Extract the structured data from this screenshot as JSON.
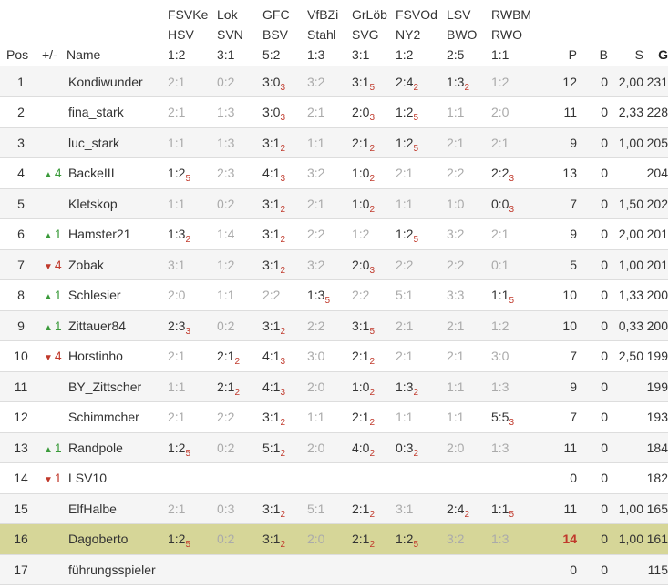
{
  "headers": {
    "pos": "Pos",
    "change": "+/-",
    "name": "Name",
    "games": [
      {
        "home": "FSVKe",
        "away": "HSV",
        "result": "1:2"
      },
      {
        "home": "Lok",
        "away": "SVN",
        "result": "3:1"
      },
      {
        "home": "GFC",
        "away": "BSV",
        "result": "5:2"
      },
      {
        "home": "VfBZi",
        "away": "Stahl",
        "result": "1:3"
      },
      {
        "home": "GrLöb",
        "away": "SVG",
        "result": "3:1"
      },
      {
        "home": "FSVOd",
        "away": "NY2",
        "result": "1:2"
      },
      {
        "home": "LSV",
        "away": "BWO",
        "result": "2:5"
      },
      {
        "home": "RWBM",
        "away": "RWO",
        "result": "1:1"
      }
    ],
    "p": "P",
    "b": "B",
    "s": "S",
    "g": "G"
  },
  "rows": [
    {
      "pos": "1",
      "dir": "",
      "chg": "",
      "name": "Kondiwunder",
      "tips": [
        {
          "t": "2:1",
          "g": true
        },
        {
          "t": "0:2",
          "g": true
        },
        {
          "t": "3:0",
          "p": "3"
        },
        {
          "t": "3:2",
          "g": true
        },
        {
          "t": "3:1",
          "p": "5"
        },
        {
          "t": "2:4",
          "p": "2"
        },
        {
          "t": "1:3",
          "p": "2"
        },
        {
          "t": "1:2",
          "g": true
        }
      ],
      "p": "12",
      "b": "0",
      "s": "2,00",
      "g": "231"
    },
    {
      "pos": "2",
      "dir": "",
      "chg": "",
      "name": "fina_stark",
      "tips": [
        {
          "t": "2:1",
          "g": true
        },
        {
          "t": "1:3",
          "g": true
        },
        {
          "t": "3:0",
          "p": "3"
        },
        {
          "t": "2:1",
          "g": true
        },
        {
          "t": "2:0",
          "p": "3"
        },
        {
          "t": "1:2",
          "p": "5"
        },
        {
          "t": "1:1",
          "g": true
        },
        {
          "t": "2:0",
          "g": true
        }
      ],
      "p": "11",
      "b": "0",
      "s": "2,33",
      "g": "228"
    },
    {
      "pos": "3",
      "dir": "",
      "chg": "",
      "name": "luc_stark",
      "tips": [
        {
          "t": "1:1",
          "g": true
        },
        {
          "t": "1:3",
          "g": true
        },
        {
          "t": "3:1",
          "p": "2"
        },
        {
          "t": "1:1",
          "g": true
        },
        {
          "t": "2:1",
          "p": "2"
        },
        {
          "t": "1:2",
          "p": "5"
        },
        {
          "t": "2:1",
          "g": true
        },
        {
          "t": "2:1",
          "g": true
        }
      ],
      "p": "9",
      "b": "0",
      "s": "1,00",
      "g": "205"
    },
    {
      "pos": "4",
      "dir": "up",
      "chg": "4",
      "name": "BackeIII",
      "tips": [
        {
          "t": "1:2",
          "p": "5"
        },
        {
          "t": "2:3",
          "g": true
        },
        {
          "t": "4:1",
          "p": "3"
        },
        {
          "t": "3:2",
          "g": true
        },
        {
          "t": "1:0",
          "p": "2"
        },
        {
          "t": "2:1",
          "g": true
        },
        {
          "t": "2:2",
          "g": true
        },
        {
          "t": "2:2",
          "p": "3"
        }
      ],
      "p": "13",
      "b": "0",
      "s": "",
      "g": "204"
    },
    {
      "pos": "5",
      "dir": "",
      "chg": "",
      "name": "Kletskop",
      "tips": [
        {
          "t": "1:1",
          "g": true
        },
        {
          "t": "0:2",
          "g": true
        },
        {
          "t": "3:1",
          "p": "2"
        },
        {
          "t": "2:1",
          "g": true
        },
        {
          "t": "1:0",
          "p": "2"
        },
        {
          "t": "1:1",
          "g": true
        },
        {
          "t": "1:0",
          "g": true
        },
        {
          "t": "0:0",
          "p": "3"
        }
      ],
      "p": "7",
      "b": "0",
      "s": "1,50",
      "g": "202"
    },
    {
      "pos": "6",
      "dir": "up",
      "chg": "1",
      "name": "Hamster21",
      "tips": [
        {
          "t": "1:3",
          "p": "2"
        },
        {
          "t": "1:4",
          "g": true
        },
        {
          "t": "3:1",
          "p": "2"
        },
        {
          "t": "2:2",
          "g": true
        },
        {
          "t": "1:2",
          "g": true
        },
        {
          "t": "1:2",
          "p": "5"
        },
        {
          "t": "3:2",
          "g": true
        },
        {
          "t": "2:1",
          "g": true
        }
      ],
      "p": "9",
      "b": "0",
      "s": "2,00",
      "g": "201"
    },
    {
      "pos": "7",
      "dir": "down",
      "chg": "4",
      "name": "Zobak",
      "tips": [
        {
          "t": "3:1",
          "g": true
        },
        {
          "t": "1:2",
          "g": true
        },
        {
          "t": "3:1",
          "p": "2"
        },
        {
          "t": "3:2",
          "g": true
        },
        {
          "t": "2:0",
          "p": "3"
        },
        {
          "t": "2:2",
          "g": true
        },
        {
          "t": "2:2",
          "g": true
        },
        {
          "t": "0:1",
          "g": true
        }
      ],
      "p": "5",
      "b": "0",
      "s": "1,00",
      "g": "201"
    },
    {
      "pos": "8",
      "dir": "up",
      "chg": "1",
      "name": "Schlesier",
      "tips": [
        {
          "t": "2:0",
          "g": true
        },
        {
          "t": "1:1",
          "g": true
        },
        {
          "t": "2:2",
          "g": true
        },
        {
          "t": "1:3",
          "p": "5"
        },
        {
          "t": "2:2",
          "g": true
        },
        {
          "t": "5:1",
          "g": true
        },
        {
          "t": "3:3",
          "g": true
        },
        {
          "t": "1:1",
          "p": "5"
        }
      ],
      "p": "10",
      "b": "0",
      "s": "1,33",
      "g": "200"
    },
    {
      "pos": "9",
      "dir": "up",
      "chg": "1",
      "name": "Zittauer84",
      "tips": [
        {
          "t": "2:3",
          "p": "3"
        },
        {
          "t": "0:2",
          "g": true
        },
        {
          "t": "3:1",
          "p": "2"
        },
        {
          "t": "2:2",
          "g": true
        },
        {
          "t": "3:1",
          "p": "5"
        },
        {
          "t": "2:1",
          "g": true
        },
        {
          "t": "2:1",
          "g": true
        },
        {
          "t": "1:2",
          "g": true
        }
      ],
      "p": "10",
      "b": "0",
      "s": "0,33",
      "g": "200"
    },
    {
      "pos": "10",
      "dir": "down",
      "chg": "4",
      "name": "Horstinho",
      "tips": [
        {
          "t": "2:1",
          "g": true
        },
        {
          "t": "2:1",
          "p": "2"
        },
        {
          "t": "4:1",
          "p": "3"
        },
        {
          "t": "3:0",
          "g": true
        },
        {
          "t": "2:1",
          "p": "2"
        },
        {
          "t": "2:1",
          "g": true
        },
        {
          "t": "2:1",
          "g": true
        },
        {
          "t": "3:0",
          "g": true
        }
      ],
      "p": "7",
      "b": "0",
      "s": "2,50",
      "g": "199"
    },
    {
      "pos": "11",
      "dir": "",
      "chg": "",
      "name": "BY_Zittscher",
      "tips": [
        {
          "t": "1:1",
          "g": true
        },
        {
          "t": "2:1",
          "p": "2"
        },
        {
          "t": "4:1",
          "p": "3"
        },
        {
          "t": "2:0",
          "g": true
        },
        {
          "t": "1:0",
          "p": "2"
        },
        {
          "t": "1:3",
          "p": "2"
        },
        {
          "t": "1:1",
          "g": true
        },
        {
          "t": "1:3",
          "g": true
        }
      ],
      "p": "9",
      "b": "0",
      "s": "",
      "g": "199"
    },
    {
      "pos": "12",
      "dir": "",
      "chg": "",
      "name": "Schimmcher",
      "tips": [
        {
          "t": "2:1",
          "g": true
        },
        {
          "t": "2:2",
          "g": true
        },
        {
          "t": "3:1",
          "p": "2"
        },
        {
          "t": "1:1",
          "g": true
        },
        {
          "t": "2:1",
          "p": "2"
        },
        {
          "t": "1:1",
          "g": true
        },
        {
          "t": "1:1",
          "g": true
        },
        {
          "t": "5:5",
          "p": "3"
        }
      ],
      "p": "7",
      "b": "0",
      "s": "",
      "g": "193"
    },
    {
      "pos": "13",
      "dir": "up",
      "chg": "1",
      "name": "Randpole",
      "tips": [
        {
          "t": "1:2",
          "p": "5"
        },
        {
          "t": "0:2",
          "g": true
        },
        {
          "t": "5:1",
          "p": "2"
        },
        {
          "t": "2:0",
          "g": true
        },
        {
          "t": "4:0",
          "p": "2"
        },
        {
          "t": "0:3",
          "p": "2"
        },
        {
          "t": "2:0",
          "g": true
        },
        {
          "t": "1:3",
          "g": true
        }
      ],
      "p": "11",
      "b": "0",
      "s": "",
      "g": "184"
    },
    {
      "pos": "14",
      "dir": "down",
      "chg": "1",
      "name": "LSV10",
      "tips": [],
      "p": "0",
      "b": "0",
      "s": "",
      "g": "182"
    },
    {
      "pos": "15",
      "dir": "",
      "chg": "",
      "name": "ElfHalbe",
      "tips": [
        {
          "t": "2:1",
          "g": true
        },
        {
          "t": "0:3",
          "g": true
        },
        {
          "t": "3:1",
          "p": "2"
        },
        {
          "t": "5:1",
          "g": true
        },
        {
          "t": "2:1",
          "p": "2"
        },
        {
          "t": "3:1",
          "g": true
        },
        {
          "t": "2:4",
          "p": "2"
        },
        {
          "t": "1:1",
          "p": "5"
        }
      ],
      "p": "11",
      "b": "0",
      "s": "1,00",
      "g": "165"
    },
    {
      "pos": "16",
      "dir": "",
      "chg": "",
      "name": "Dagoberto",
      "hl": true,
      "tips": [
        {
          "t": "1:2",
          "p": "5"
        },
        {
          "t": "0:2",
          "g": true
        },
        {
          "t": "3:1",
          "p": "2"
        },
        {
          "t": "2:0",
          "g": true
        },
        {
          "t": "2:1",
          "p": "2"
        },
        {
          "t": "1:2",
          "p": "5"
        },
        {
          "t": "3:2",
          "g": true
        },
        {
          "t": "1:3",
          "g": true
        }
      ],
      "p": "14",
      "b": "0",
      "s": "1,00",
      "g": "161"
    },
    {
      "pos": "17",
      "dir": "",
      "chg": "",
      "name": "führungsspieler",
      "tips": [],
      "p": "0",
      "b": "0",
      "s": "",
      "g": "115"
    }
  ]
}
